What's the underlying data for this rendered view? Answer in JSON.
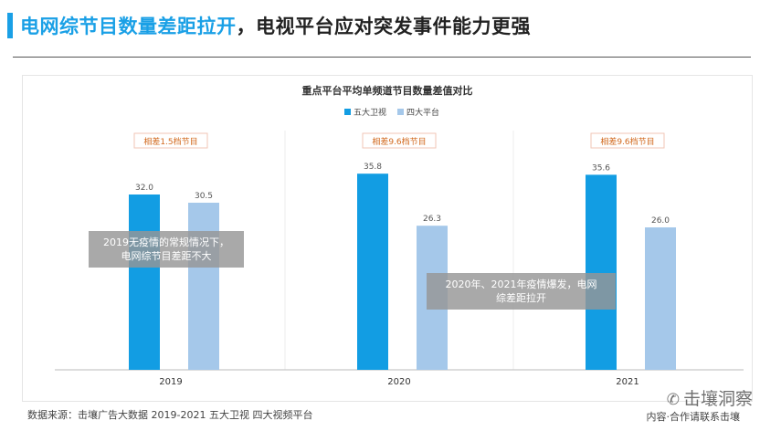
{
  "header": {
    "title_highlight": "电网综节目数量差距拉开",
    "title_rest": "，电视平台应对突发事件能力更强"
  },
  "chart_data": {
    "type": "bar",
    "title": "重点平台平均单频道节目数量差值对比",
    "categories": [
      "2019",
      "2020",
      "2021"
    ],
    "series": [
      {
        "name": "五大卫视",
        "values": [
          32.0,
          35.8,
          35.6
        ],
        "color": "#129de3"
      },
      {
        "name": "四大平台",
        "values": [
          30.5,
          26.3,
          26.0
        ],
        "color": "#a5c8ea"
      }
    ],
    "value_labels": [
      [
        "32.0",
        "35.8",
        "35.6"
      ],
      [
        "30.5",
        "26.3",
        "26.0"
      ]
    ],
    "differences": [
      "相差1.5档节目",
      "相差9.6档节目",
      "相差9.6档节目"
    ],
    "ylim": [
      0,
      40
    ],
    "legend_position": "top-center",
    "grid": false,
    "annotations": [
      "2019无疫情的常规情况下，电网综节目差距不大",
      "2020年、2021年疫情爆发，电网综差距拉开"
    ]
  },
  "footer": {
    "source": "数据来源：击壤广告大数据 2019-2021 五大卫视 四大视频平台",
    "watermark": "击壤洞察",
    "watermark_sub": "内容·合作请联系击壤"
  }
}
